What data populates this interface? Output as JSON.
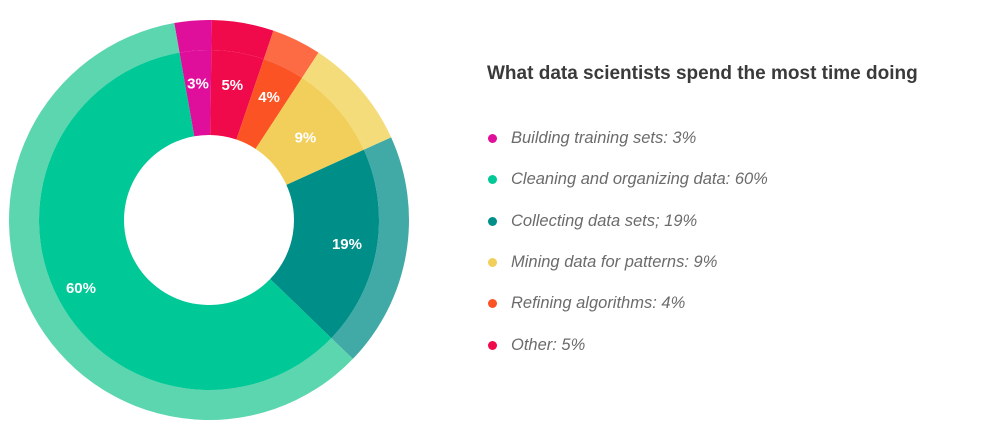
{
  "chart_data": {
    "type": "pie",
    "title": "What data scientists spend the most time doing",
    "slices": [
      {
        "label": "Building training sets",
        "value": 3,
        "legend_text": "Building training sets: 3%",
        "value_text": "3%",
        "color": "#df0f9b",
        "outer_color": "#df0f9b"
      },
      {
        "label": "Other",
        "value": 5,
        "legend_text": "Other: 5%",
        "value_text": "5%",
        "color": "#f0094b",
        "outer_color": "#f0094b"
      },
      {
        "label": "Refining algorithms",
        "value": 4,
        "legend_text": "Refining algorithms: 4%",
        "value_text": "4%",
        "color": "#fc5324",
        "outer_color": "#fd6b45"
      },
      {
        "label": "Mining data for patterns",
        "value": 9,
        "legend_text": "Mining data for patterns: 9%",
        "value_text": "9%",
        "color": "#f2cf5a",
        "outer_color": "#f4dc7b"
      },
      {
        "label": "Collecting data sets",
        "value": 19,
        "legend_text": "Collecting data sets; 19%",
        "value_text": "19%",
        "color": "#008e88",
        "outer_color": "#42aaa6"
      },
      {
        "label": "Cleaning and organizing data",
        "value": 60,
        "legend_text": "Cleaning and organizing data: 60%",
        "value_text": "60%",
        "color": "#00c896",
        "outer_color": "#5bd6ae"
      }
    ],
    "legend_order": [
      0,
      5,
      4,
      3,
      2,
      1
    ],
    "legend_placement": "right"
  }
}
